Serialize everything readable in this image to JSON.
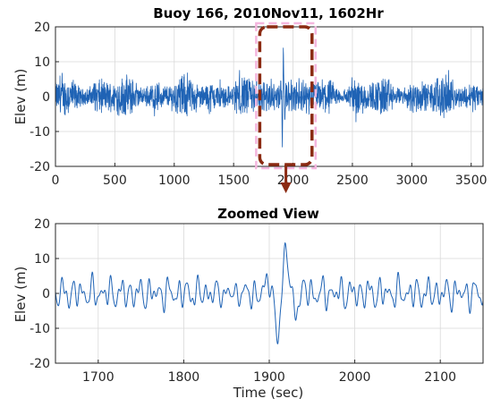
{
  "colors": {
    "signal": "#1f63b5",
    "highlight_box": "#8b2a12",
    "highlight_glow": "#f4b6de"
  },
  "chart_data": [
    {
      "type": "line",
      "title": "Buoy 166, 2010Nov11, 1602Hr",
      "xlabel": "",
      "ylabel": "Elev (m)",
      "xlim": [
        0,
        3600
      ],
      "ylim": [
        -20,
        20
      ],
      "xticks": [
        0,
        500,
        1000,
        1500,
        2000,
        2500,
        3000,
        3500
      ],
      "yticks": [
        -20,
        -10,
        0,
        10,
        20
      ],
      "grid": true,
      "series_style": "dense wave elevation record, roughly -6 to 6 m with a burst reaching about 18 m near t=1920 s",
      "highlight_region_x": [
        1720,
        2160
      ],
      "highlight_region_y": [
        -20,
        20
      ],
      "arrow_to": "Zoomed View"
    },
    {
      "type": "line",
      "title": "Zoomed View",
      "xlabel": "Time (sec)",
      "ylabel": "Elev (m)",
      "xlim": [
        1650,
        2150
      ],
      "ylim": [
        -20,
        20
      ],
      "xticks": [
        1700,
        1800,
        1900,
        2000,
        2100
      ],
      "yticks": [
        -20,
        -10,
        0,
        10,
        20
      ],
      "grid": true,
      "series_style": "oscillating elevation mostly within -5 to 6 m; large waves near 1900-1935 s (peaks ~14 and ~17 m, troughs ~-10 and ~-11 m)"
    }
  ],
  "ui": {
    "top_title": "Buoy 166, 2010Nov11, 1602Hr",
    "bottom_title": "Zoomed View",
    "ylabel": "Elev (m)",
    "xlabel": "Time (sec)"
  }
}
